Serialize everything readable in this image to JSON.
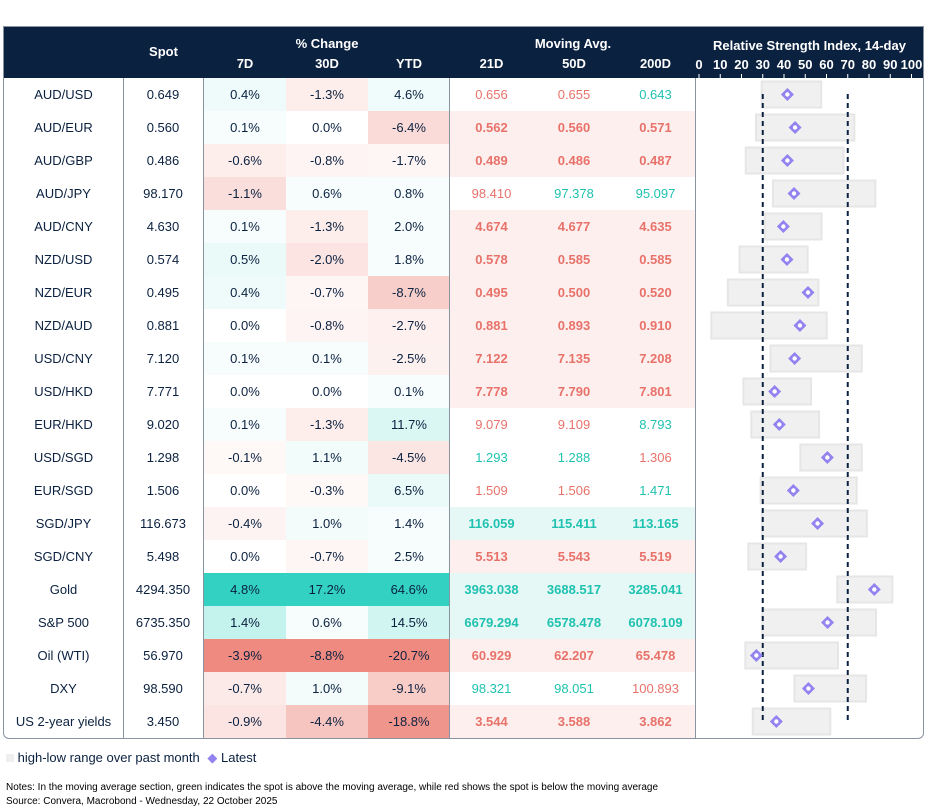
{
  "chart_data": {
    "type": "table",
    "headers": {
      "spot": "Spot",
      "pct_group": "% Change",
      "pct_cols": [
        "7D",
        "30D",
        "YTD"
      ],
      "ma_group": "Moving Avg.",
      "ma_cols": [
        "21D",
        "50D",
        "200D"
      ],
      "rsi_title": "Relative Strength Index, 14-day",
      "rsi_ticks": [
        "0",
        "10",
        "20",
        "30",
        "40",
        "50",
        "60",
        "70",
        "80",
        "90",
        "100"
      ]
    },
    "rsi_axis": [
      0,
      100
    ],
    "rsi_reference_lines": [
      30,
      70
    ],
    "rows": [
      {
        "pair": "AUD/USD",
        "spot": "0.649",
        "pct": [
          0.4,
          -1.3,
          4.6
        ],
        "ma": [
          "0.656",
          "0.655",
          "0.643"
        ],
        "rsi_low": 29.5,
        "rsi_high": 57.5,
        "rsi": 41.6
      },
      {
        "pair": "AUD/EUR",
        "spot": "0.560",
        "pct": [
          0.1,
          0.0,
          -6.4
        ],
        "ma": [
          "0.562",
          "0.560",
          "0.571"
        ],
        "rsi_low": 26.8,
        "rsi_high": 73.1,
        "rsi": 45.2
      },
      {
        "pair": "AUD/GBP",
        "spot": "0.486",
        "pct": [
          -0.6,
          -0.8,
          -1.7
        ],
        "ma": [
          "0.489",
          "0.486",
          "0.487"
        ],
        "rsi_low": 22.0,
        "rsi_high": 68.0,
        "rsi": 41.6
      },
      {
        "pair": "AUD/JPY",
        "spot": "98.170",
        "pct": [
          -1.1,
          0.6,
          0.8
        ],
        "ma": [
          "98.410",
          "97.378",
          "95.097"
        ],
        "rsi_low": 34.8,
        "rsi_high": 83.0,
        "rsi": 44.7
      },
      {
        "pair": "AUD/CNY",
        "spot": "4.630",
        "pct": [
          0.1,
          -1.3,
          2.0
        ],
        "ma": [
          "4.674",
          "4.677",
          "4.635"
        ],
        "rsi_low": 31.0,
        "rsi_high": 57.7,
        "rsi": 39.7
      },
      {
        "pair": "NZD/USD",
        "spot": "0.574",
        "pct": [
          0.5,
          -2.0,
          1.8
        ],
        "ma": [
          "0.578",
          "0.585",
          "0.585"
        ],
        "rsi_low": 19.1,
        "rsi_high": 51.1,
        "rsi": 41.4
      },
      {
        "pair": "NZD/EUR",
        "spot": "0.495",
        "pct": [
          0.4,
          -0.7,
          -8.7
        ],
        "ma": [
          "0.495",
          "0.500",
          "0.520"
        ],
        "rsi_low": 13.6,
        "rsi_high": 56.2,
        "rsi": 51.3
      },
      {
        "pair": "NZD/AUD",
        "spot": "0.881",
        "pct": [
          0.0,
          -0.8,
          -2.7
        ],
        "ma": [
          "0.881",
          "0.893",
          "0.910"
        ],
        "rsi_low": 5.8,
        "rsi_high": 60.1,
        "rsi": 47.5
      },
      {
        "pair": "USD/CNY",
        "spot": "7.120",
        "pct": [
          0.1,
          0.1,
          -2.5
        ],
        "ma": [
          "7.122",
          "7.135",
          "7.208"
        ],
        "rsi_low": 33.6,
        "rsi_high": 76.6,
        "rsi": 45.0
      },
      {
        "pair": "USD/HKD",
        "spot": "7.771",
        "pct": [
          0.0,
          0.0,
          0.1
        ],
        "ma": [
          "7.778",
          "7.790",
          "7.801"
        ],
        "rsi_low": 20.9,
        "rsi_high": 52.7,
        "rsi": 35.6
      },
      {
        "pair": "EUR/HKD",
        "spot": "9.020",
        "pct": [
          0.1,
          -1.3,
          11.7
        ],
        "ma": [
          "9.079",
          "9.109",
          "8.793"
        ],
        "rsi_low": 24.6,
        "rsi_high": 56.5,
        "rsi": 37.8
      },
      {
        "pair": "USD/SGD",
        "spot": "1.298",
        "pct": [
          -0.1,
          1.1,
          -4.5
        ],
        "ma": [
          "1.293",
          "1.288",
          "1.306"
        ],
        "rsi_low": 47.7,
        "rsi_high": 76.6,
        "rsi": 60.4
      },
      {
        "pair": "EUR/SGD",
        "spot": "1.506",
        "pct": [
          0.0,
          -0.3,
          6.5
        ],
        "ma": [
          "1.509",
          "1.506",
          "1.471"
        ],
        "rsi_low": 29.0,
        "rsi_high": 74.2,
        "rsi": 44.4
      },
      {
        "pair": "SGD/JPY",
        "spot": "116.673",
        "pct": [
          -0.4,
          1.0,
          1.4
        ],
        "ma": [
          "116.059",
          "115.411",
          "113.165"
        ],
        "rsi_low": 29.6,
        "rsi_high": 79.0,
        "rsi": 55.8
      },
      {
        "pair": "SGD/CNY",
        "spot": "5.498",
        "pct": [
          0.0,
          -0.7,
          2.5
        ],
        "ma": [
          "5.513",
          "5.543",
          "5.519"
        ],
        "rsi_low": 23.2,
        "rsi_high": 50.4,
        "rsi": 38.4
      },
      {
        "pair": "Gold",
        "spot": "4294.350",
        "pct": [
          4.8,
          17.2,
          64.6
        ],
        "ma": [
          "3963.038",
          "3688.517",
          "3285.041"
        ],
        "rsi_low": 65.1,
        "rsi_high": 91.0,
        "rsi": 82.5
      },
      {
        "pair": "S&P 500",
        "spot": "6735.350",
        "pct": [
          1.4,
          0.6,
          14.5
        ],
        "ma": [
          "6679.294",
          "6578.478",
          "6078.109"
        ],
        "rsi_low": 29.8,
        "rsi_high": 83.3,
        "rsi": 60.5
      },
      {
        "pair": "Oil (WTI)",
        "spot": "56.970",
        "pct": [
          -3.9,
          -8.8,
          -20.7
        ],
        "ma": [
          "60.929",
          "62.207",
          "65.478"
        ],
        "rsi_low": 21.8,
        "rsi_high": 65.4,
        "rsi": 27.0
      },
      {
        "pair": "DXY",
        "spot": "98.590",
        "pct": [
          -0.7,
          1.0,
          -9.1
        ],
        "ma": [
          "98.321",
          "98.051",
          "100.893"
        ],
        "rsi_low": 44.9,
        "rsi_high": 78.6,
        "rsi": 51.5
      },
      {
        "pair": "US 2-year yields",
        "spot": "3.450",
        "pct": [
          -0.9,
          -4.4,
          -18.8
        ],
        "ma": [
          "3.544",
          "3.588",
          "3.862"
        ],
        "rsi_low": 25.3,
        "rsi_high": 61.8,
        "rsi": 36.4
      }
    ],
    "colors": {
      "header_bg": "#0b2140",
      "positive": "#33d1c1",
      "negative": "#ef8a80",
      "ma_green": "#1fc2b0",
      "ma_red": "#e8726a",
      "range_bar": "#efefef",
      "marker": "#9283f0"
    }
  },
  "legend": {
    "range_label": "high-low range over past month",
    "latest_label": "Latest"
  },
  "notes": "Notes: In the moving average section, green indicates the spot is above the moving average, while red shows the spot is below the moving average",
  "source": "Source: Convera, Macrobond - Wednesday, 22 October 2025"
}
